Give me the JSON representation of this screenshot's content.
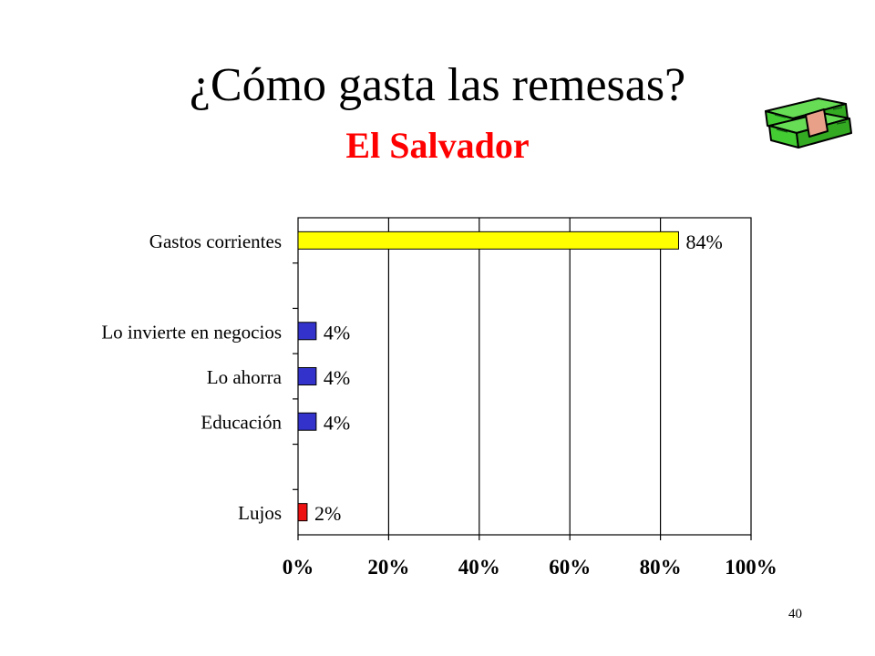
{
  "slide": {
    "title": "¿Cómo gasta las remesas?",
    "subtitle": "El Salvador",
    "subtitle_color": "#ff0000",
    "page_number": "40",
    "icon": "money-stack-icon"
  },
  "chart_data": {
    "type": "bar",
    "orientation": "horizontal",
    "categories": [
      "Gastos corrientes",
      "Lo invierte en negocios",
      "Lo ahorra",
      "Educación",
      "Lujos"
    ],
    "values": [
      84,
      4,
      4,
      4,
      2
    ],
    "data_labels": [
      "84%",
      "4%",
      "4%",
      "4%",
      "2%"
    ],
    "bar_colors": [
      "#ffff00",
      "#3333cc",
      "#3333cc",
      "#3333cc",
      "#ee1111"
    ],
    "xlim": [
      0,
      100
    ],
    "x_ticks": [
      "0%",
      "20%",
      "40%",
      "60%",
      "80%",
      "100%"
    ],
    "grid": true,
    "legend": "none"
  }
}
